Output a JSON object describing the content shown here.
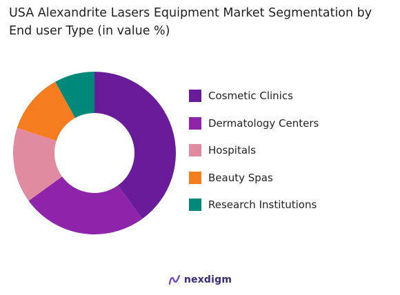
{
  "title": "USA Alexandrite Lasers Equipment Market Segmentation by End user Type (in value %)",
  "brand": {
    "name": "nexdigm",
    "icon": "nexdigm-logo-icon"
  },
  "chart_data": {
    "type": "pie",
    "variant": "donut",
    "title": "USA Alexandrite Lasers Equipment Market Segmentation by End user Type (in value %)",
    "categories": [
      "Cosmetic Clinics",
      "Dermatology Centers",
      "Hospitals",
      "Beauty Spas",
      "Research Institutions"
    ],
    "values": [
      40,
      25,
      15,
      12,
      8
    ],
    "colors": [
      "#6a1b9a",
      "#8e24aa",
      "#e08ba0",
      "#f57c1f",
      "#00897b"
    ],
    "legend_position": "right",
    "grid": false
  }
}
